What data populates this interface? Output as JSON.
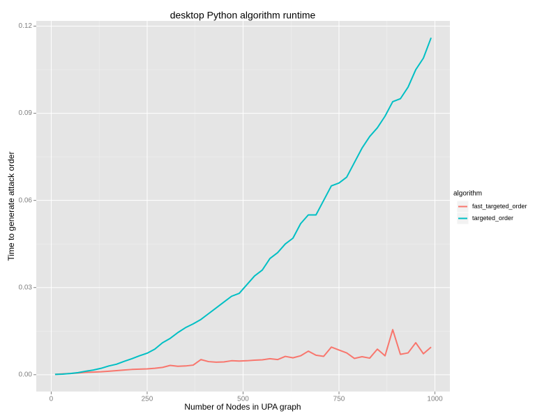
{
  "chart_data": {
    "type": "line",
    "title": "desktop Python algorithm runtime",
    "x_label": "Number of Nodes in UPA graph",
    "y_label": "Time to generate attack order",
    "legend_title": "algorithm",
    "legend_position": "right",
    "grid": true,
    "x": [
      10,
      30,
      50,
      70,
      90,
      110,
      130,
      150,
      170,
      190,
      210,
      230,
      250,
      270,
      290,
      310,
      330,
      350,
      370,
      390,
      410,
      430,
      450,
      470,
      490,
      510,
      530,
      550,
      570,
      590,
      610,
      630,
      650,
      670,
      690,
      710,
      730,
      750,
      770,
      790,
      810,
      830,
      850,
      870,
      890,
      910,
      930,
      950,
      970,
      990
    ],
    "series": [
      {
        "name": "fast_targeted_order",
        "color": "#F8766D",
        "values": [
          0.0001,
          0.0003,
          0.0004,
          0.0006,
          0.0008,
          0.0009,
          0.001,
          0.0012,
          0.0014,
          0.0016,
          0.0018,
          0.0019,
          0.002,
          0.0022,
          0.0025,
          0.0032,
          0.0029,
          0.003,
          0.0033,
          0.0052,
          0.0045,
          0.0043,
          0.0044,
          0.0048,
          0.0047,
          0.0048,
          0.005,
          0.0051,
          0.0055,
          0.0052,
          0.0063,
          0.0058,
          0.0065,
          0.0081,
          0.0067,
          0.0063,
          0.0095,
          0.0085,
          0.0075,
          0.0056,
          0.0062,
          0.0057,
          0.0088,
          0.0065,
          0.0155,
          0.007,
          0.0075,
          0.011,
          0.0072,
          0.0095
        ]
      },
      {
        "name": "targeted_order",
        "color": "#00BFC4",
        "values": [
          0.0001,
          0.0002,
          0.0004,
          0.0007,
          0.0012,
          0.0016,
          0.0022,
          0.003,
          0.0036,
          0.0046,
          0.0055,
          0.0065,
          0.0074,
          0.0088,
          0.011,
          0.0125,
          0.0145,
          0.0162,
          0.0175,
          0.019,
          0.021,
          0.023,
          0.025,
          0.027,
          0.028,
          0.031,
          0.034,
          0.036,
          0.04,
          0.042,
          0.045,
          0.047,
          0.052,
          0.055,
          0.055,
          0.06,
          0.065,
          0.066,
          0.068,
          0.073,
          0.078,
          0.082,
          0.085,
          0.089,
          0.094,
          0.095,
          0.099,
          0.105,
          0.109,
          0.116
        ]
      }
    ],
    "xlim": [
      -39,
      1039
    ],
    "xticks": [
      0,
      250,
      500,
      750,
      1000
    ],
    "ylim": [
      -0.0058,
      0.1218
    ],
    "yticks": [
      {
        "value": 0,
        "label": "0.00"
      },
      {
        "value": 0.03,
        "label": "0.03"
      },
      {
        "value": 0.06,
        "label": "0.06"
      },
      {
        "value": 0.09,
        "label": "0.09"
      },
      {
        "value": 0.12,
        "label": "0.12"
      }
    ]
  }
}
